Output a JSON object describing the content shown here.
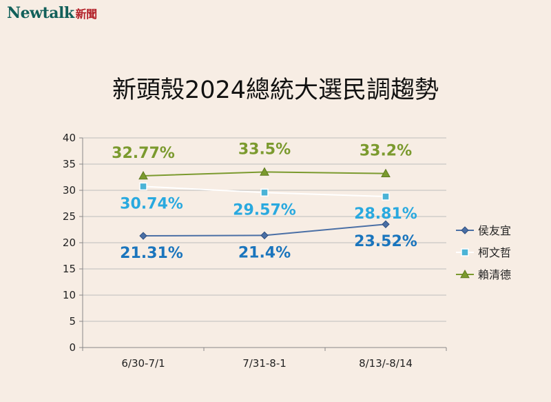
{
  "brand": {
    "name": "Newtalk",
    "suffix": "新聞"
  },
  "colors": {
    "background": "#f7ede4",
    "grid": "#bdbdbd",
    "label_blue": "#1a75bd",
    "label_cyan": "#29a9df",
    "label_green": "#7b9a2e"
  },
  "chart_data": {
    "type": "line",
    "title": "新頭殼2024總統大選民調趨勢",
    "xlabel": "",
    "ylabel": "",
    "categories": [
      "6/30-7/1",
      "7/31-8-1",
      "8/13/-8/14"
    ],
    "ylim": [
      0,
      40
    ],
    "yticks": [
      0,
      5,
      10,
      15,
      20,
      25,
      30,
      35,
      40
    ],
    "grid": true,
    "legend_position": "right",
    "series": [
      {
        "name": "侯友宜",
        "values": [
          21.31,
          21.4,
          23.52
        ],
        "labels": [
          "21.31%",
          "21.4%",
          "23.52%"
        ],
        "color": "#4a6fa5",
        "marker": "diamond",
        "label_color": "#1a75bd"
      },
      {
        "name": "柯文哲",
        "values": [
          30.74,
          29.57,
          28.81
        ],
        "labels": [
          "30.74%",
          "29.57%",
          "28.81%"
        ],
        "color": "#ffffff",
        "marker": "square",
        "label_color": "#29a9df"
      },
      {
        "name": "賴清德",
        "values": [
          32.77,
          33.5,
          33.2
        ],
        "labels": [
          "32.77%",
          "33.5%",
          "33.2%"
        ],
        "color": "#7b9a2e",
        "marker": "triangle",
        "label_color": "#7b9a2e"
      }
    ]
  }
}
